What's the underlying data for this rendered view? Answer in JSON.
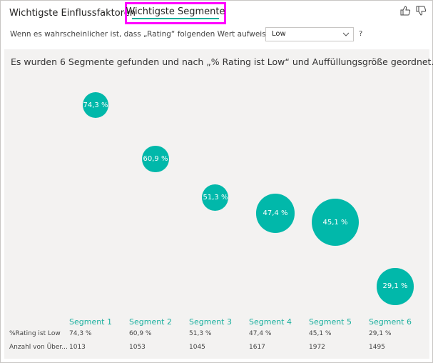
{
  "tabs": {
    "influencers_label": "Wichtigste Einflussfaktoren",
    "segments_label": "Wichtigste Segmente"
  },
  "question": {
    "text": "Wenn es wahrscheinlicher ist, dass „Rating“ folgenden Wert aufweist:",
    "selected_value": "Low",
    "help": "?"
  },
  "summary": "Es wurden 6 Segmente gefunden und nach „% Rating ist Low“ und Auffüllungsgröße geordnet...",
  "colors": {
    "accent": "#01b8aa",
    "highlight_box": "#ff00ff"
  },
  "icons": [
    "thumbs-up-icon",
    "thumbs-down-icon",
    "chevron-down-icon"
  ],
  "table": {
    "row_labels": [
      "%Rating ist Low",
      "Anzahl von Über..."
    ]
  },
  "segments": [
    {
      "name": "Segment 1",
      "pct_label": "74,3 %",
      "pct": 74.3,
      "count": "1013",
      "count_value": 1013
    },
    {
      "name": "Segment 2",
      "pct_label": "60,9 %",
      "pct": 60.9,
      "count": "1053",
      "count_value": 1053
    },
    {
      "name": "Segment 3",
      "pct_label": "51,3 %",
      "pct": 51.3,
      "count": "1045",
      "count_value": 1045
    },
    {
      "name": "Segment 4",
      "pct_label": "47,4 %",
      "pct": 47.4,
      "count": "1617",
      "count_value": 1617
    },
    {
      "name": "Segment 5",
      "pct_label": "45,1 %",
      "pct": 45.1,
      "count": "1972",
      "count_value": 1972
    },
    {
      "name": "Segment 6",
      "pct_label": "29,1 %",
      "pct": 29.1,
      "count": "1495",
      "count_value": 1495
    }
  ]
}
